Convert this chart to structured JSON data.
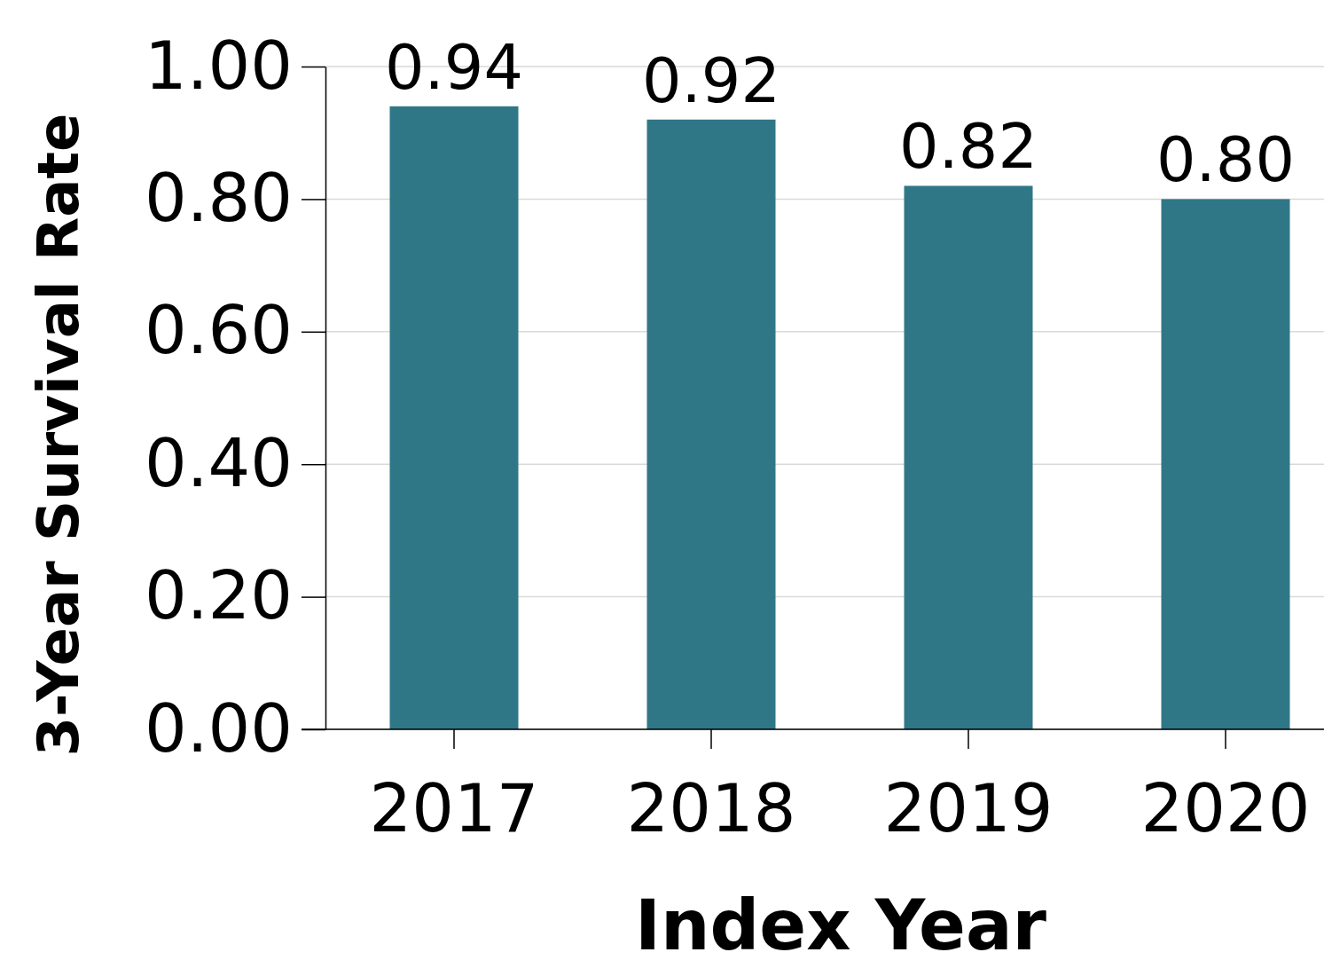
{
  "chart_data": {
    "type": "bar",
    "xlabel": "Index Year",
    "ylabel": "3-Year Survival Rate",
    "categories": [
      "2017",
      "2018",
      "2019",
      "2020"
    ],
    "values": [
      0.94,
      0.92,
      0.82,
      0.8
    ],
    "value_labels": [
      "0.94",
      "0.92",
      "0.82",
      "0.80"
    ],
    "color": "#2f7787",
    "ylim": [
      0,
      1
    ],
    "yticks": [
      {
        "value": 0,
        "label": "0.00"
      },
      {
        "value": 0.2,
        "label": "0.20"
      },
      {
        "value": 0.4,
        "label": "0.40"
      },
      {
        "value": 0.6,
        "label": "0.60"
      },
      {
        "value": 0.8,
        "label": "0.80"
      },
      {
        "value": 1,
        "label": "1.00"
      }
    ],
    "grid": "y"
  }
}
